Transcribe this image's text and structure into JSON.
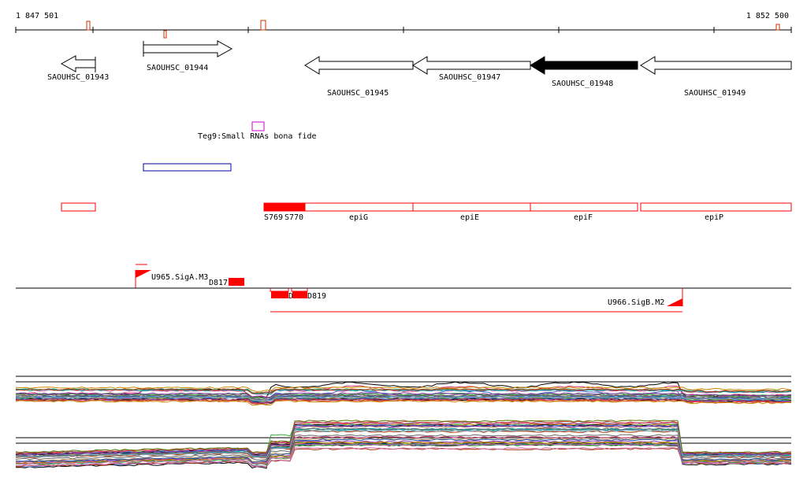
{
  "ruler": {
    "start_label": "1 847 501",
    "end_label": "1 852 500"
  },
  "genes": [
    {
      "label": "SAOUHSC_01943",
      "strand": "-",
      "filled": false
    },
    {
      "label": "SAOUHSC_01944",
      "strand": "+",
      "filled": false
    },
    {
      "label": "SAOUHSC_01945",
      "strand": "-",
      "filled": false
    },
    {
      "label": "SAOUHSC_01947",
      "strand": "-",
      "filled": false
    },
    {
      "label": "SAOUHSC_01948",
      "strand": "-",
      "filled": true
    },
    {
      "label": "SAOUHSC_01949",
      "strand": "-",
      "filled": false
    }
  ],
  "small_rna": {
    "label": "Teg9:Small RNAs bona fide"
  },
  "operon_features": [
    {
      "label": "S769"
    },
    {
      "label": "S770"
    },
    {
      "label": "epiG"
    },
    {
      "label": "epiE"
    },
    {
      "label": "epiF"
    },
    {
      "label": "epiP"
    }
  ],
  "promoters": [
    {
      "label": "U965.SigA.M3"
    },
    {
      "label": "U966.SigB.M2"
    }
  ],
  "segments": [
    {
      "label": "D817"
    },
    {
      "label": "D819"
    },
    {
      "label": "D"
    }
  ],
  "colors": {
    "axis": "#000000",
    "gene_outline": "#000000",
    "gene_fill_selected": "#000000",
    "operon": "#ff0000",
    "small_rna_box": "#cc00cc",
    "region_box": "#0000aa",
    "marker": "#cc3300"
  }
}
